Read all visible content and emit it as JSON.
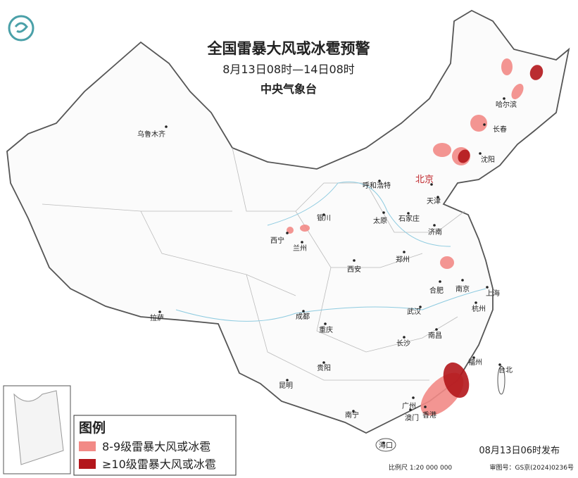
{
  "header": {
    "title": "全国雷暴大风或冰雹预警",
    "period": "8月13日08时—14日08时",
    "issuer": "中央气象台"
  },
  "cities": [
    "乌鲁木齐",
    "哈尔滨",
    "长春",
    "沈阳",
    "北京",
    "呼和浩特",
    "天津",
    "银川",
    "太原",
    "石家庄",
    "济南",
    "西宁",
    "兰州",
    "郑州",
    "西安",
    "合肥",
    "南京",
    "上海",
    "拉萨",
    "成都",
    "武汉",
    "杭州",
    "重庆",
    "南昌",
    "长沙",
    "福州",
    "台北",
    "贵阳",
    "昆明",
    "南宁",
    "广州",
    "澳门",
    "香港",
    "海口"
  ],
  "legend": {
    "title": "图例",
    "items": [
      {
        "label": "8-9级雷暴大风或冰雹",
        "color": "#f28a86"
      },
      {
        "label": "≥10级雷暴大风或冰雹",
        "color": "#b3161b"
      }
    ]
  },
  "footer": {
    "published": "08月13日06时发布",
    "scale": "比例尺 1:20 000 000",
    "review": "审图号：GS京(2024)0236号"
  }
}
